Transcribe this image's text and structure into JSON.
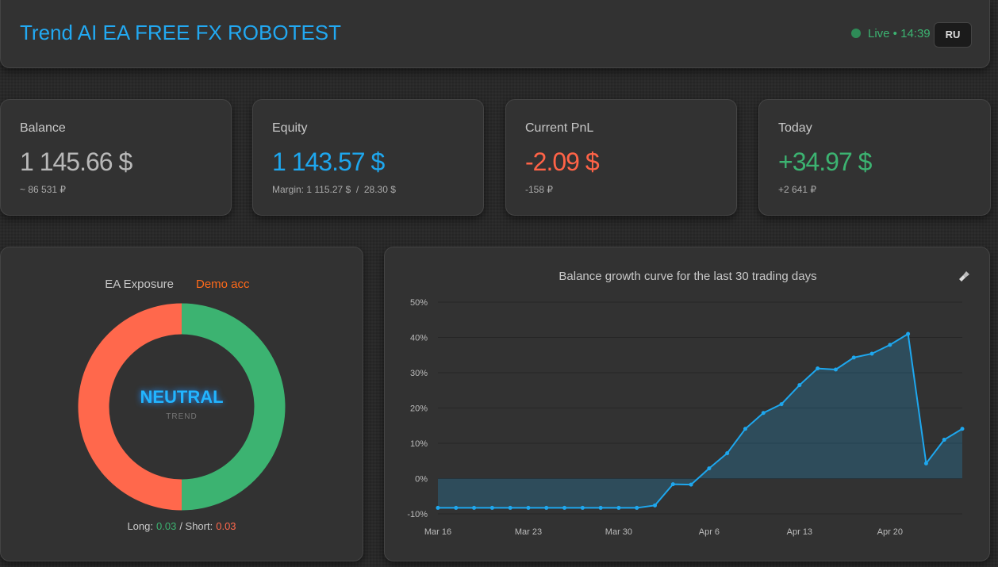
{
  "header": {
    "title": "Trend AI EA FREE FX ROBOTEST",
    "status": "Live • 14:39",
    "language": "RU"
  },
  "cards": [
    {
      "label": "Balance",
      "value": "1 145.66 $",
      "sub": "~ 86 531 ₽",
      "color": "#b8b8b8"
    },
    {
      "label": "Equity",
      "value": "1 143.57 $",
      "sub": "Margin: 1 115.27 $  /  28.30 $",
      "color": "#1ea7ee"
    },
    {
      "label": "Current PnL",
      "value": "-2.09 $",
      "sub": "-158 ₽",
      "color": "#ff6347"
    },
    {
      "label": "Today",
      "value": "+34.97 $",
      "sub": "+2 641 ₽",
      "color": "#3cb371"
    }
  ],
  "exposure": {
    "type": "donut",
    "title": "EA Exposure",
    "account": "Demo acc",
    "state": "NEUTRAL",
    "state_caption": "TREND",
    "long_label": "Long:",
    "short_label": "/ Short:",
    "long": 0.03,
    "short": 0.03,
    "long_color": "#3cb371",
    "short_color": "#ff684c"
  },
  "balance_chart": {
    "type": "line",
    "title": "Balance growth curve for the last 30 trading days",
    "categories": [
      "Mar 16",
      null,
      null,
      null,
      null,
      "Mar 23",
      null,
      null,
      null,
      null,
      "Mar 30",
      null,
      null,
      null,
      null,
      "Apr 6",
      null,
      null,
      null,
      null,
      "Apr 13",
      null,
      null,
      null,
      null,
      "Apr 20",
      null,
      null,
      null,
      null
    ],
    "values": [
      -8.3,
      -8.3,
      -8.3,
      -8.3,
      -8.3,
      -8.3,
      -8.3,
      -8.3,
      -8.3,
      -8.3,
      -8.3,
      -8.3,
      -7.6,
      -1.6,
      -1.7,
      2.9,
      7.2,
      14.1,
      18.6,
      21.1,
      26.5,
      31.2,
      30.9,
      34.3,
      35.4,
      37.9,
      41.0,
      4.3,
      11.0,
      14.1
    ],
    "color": "#1ea7ee",
    "ylim": [
      -10,
      50
    ],
    "yticks": [
      {
        "value": -10,
        "label": "-10%"
      },
      {
        "value": 0,
        "label": "0%"
      },
      {
        "value": 10,
        "label": "10%"
      },
      {
        "value": 20,
        "label": "20%"
      },
      {
        "value": 30,
        "label": "30%"
      },
      {
        "value": 40,
        "label": "40%"
      },
      {
        "value": 50,
        "label": "50%"
      }
    ],
    "grid": true
  }
}
